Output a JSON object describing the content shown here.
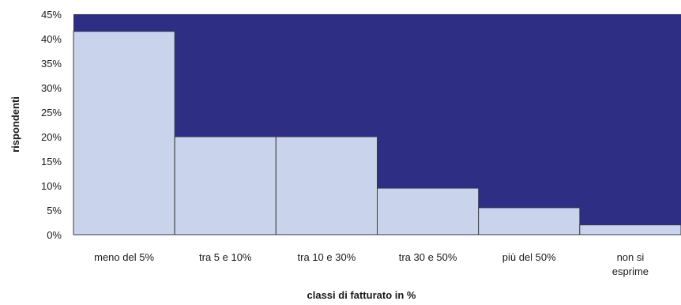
{
  "chart_data": {
    "type": "bar",
    "title": "",
    "xlabel": "classi di fatturato in %",
    "ylabel": "rispondenti",
    "ylim": [
      0,
      45
    ],
    "yticks": [
      0,
      5,
      10,
      15,
      20,
      25,
      30,
      35,
      40,
      45
    ],
    "ytick_suffix": "%",
    "categories": [
      "meno del 5%",
      "tra 5 e 10%",
      "tra 10 e 30%",
      "tra 30 e 50%",
      "più del 50%",
      "non si esprime"
    ],
    "values": [
      41.5,
      20,
      20,
      9.5,
      5.5,
      2
    ],
    "grid": false,
    "legend": "none",
    "colors": {
      "plot_background": "#2d2e84",
      "bar_fill": "#c9d3ec",
      "bar_stroke": "#3a3a3a",
      "axis_text": "#1a1a1a"
    }
  }
}
